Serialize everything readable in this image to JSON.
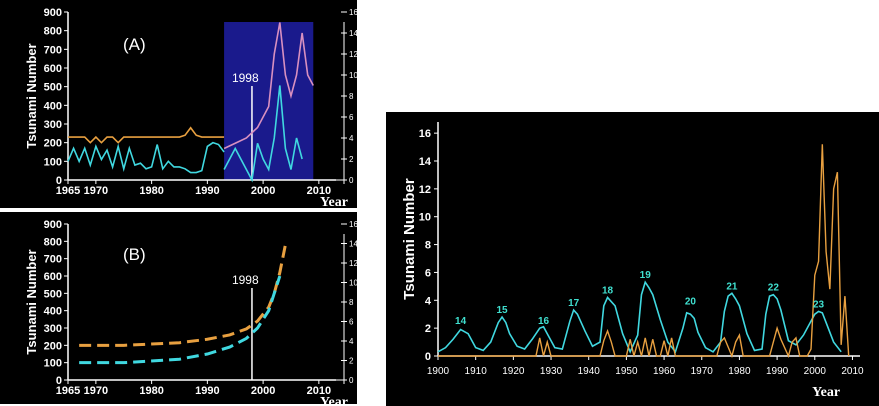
{
  "colors": {
    "cyan": "#40d8e0",
    "orange": "#e8a040",
    "pink": "#d890c0",
    "navy": "#1a1a8c",
    "white": "#ffffff"
  },
  "chart_data": [
    {
      "id": "A",
      "type": "line",
      "panel_label": "(A)",
      "ylabel": "Tsunami Number",
      "xlabel": "Year",
      "xlim": [
        1965,
        2012
      ],
      "xticks": [
        1965,
        1970,
        1980,
        1990,
        2000,
        2010
      ],
      "ylim": [
        0,
        900
      ],
      "yticks": [
        0,
        100,
        200,
        300,
        400,
        500,
        600,
        700,
        800,
        900
      ],
      "right_ylim": [
        0,
        16
      ],
      "right_yticks": [
        0,
        2,
        4,
        6,
        8,
        10,
        12,
        14,
        16
      ],
      "annotation": "1998",
      "annotation_x": 1998,
      "shaded_region": [
        1993,
        2009
      ],
      "series": [
        {
          "color": "orange",
          "x": [
            1965,
            1966,
            1967,
            1968,
            1969,
            1970,
            1971,
            1972,
            1973,
            1974,
            1975,
            1976,
            1977,
            1978,
            1979,
            1980,
            1981,
            1982,
            1983,
            1984,
            1985,
            1986,
            1987,
            1988,
            1989,
            1990,
            1991,
            1992,
            1993
          ],
          "values": [
            230,
            230,
            230,
            230,
            200,
            230,
            200,
            230,
            230,
            200,
            230,
            230,
            230,
            230,
            230,
            230,
            230,
            230,
            230,
            230,
            230,
            240,
            280,
            240,
            230,
            230,
            230,
            230,
            230
          ]
        },
        {
          "color": "cyan",
          "x": [
            1965,
            1966,
            1967,
            1968,
            1969,
            1970,
            1971,
            1972,
            1973,
            1974,
            1975,
            1976,
            1977,
            1978,
            1979,
            1980,
            1981,
            1982,
            1983,
            1984,
            1985,
            1986,
            1987,
            1988,
            1989,
            1990,
            1991,
            1992,
            1993
          ],
          "values": [
            100,
            170,
            100,
            170,
            80,
            180,
            110,
            160,
            70,
            180,
            60,
            170,
            80,
            90,
            60,
            70,
            190,
            60,
            100,
            70,
            70,
            60,
            40,
            40,
            50,
            180,
            200,
            190,
            150
          ]
        },
        {
          "color": "pink",
          "x": [
            1993,
            1995,
            1997,
            1999,
            2001,
            2002,
            2003,
            2004,
            2005,
            2006,
            2007,
            2008,
            2009
          ],
          "values": [
            3,
            3.5,
            4,
            5,
            7,
            12,
            15,
            10,
            8,
            10,
            14,
            10,
            9
          ]
        },
        {
          "color": "cyan",
          "x": [
            1993,
            1995,
            1997,
            1998,
            1999,
            2000,
            2001,
            2002,
            2003,
            2004,
            2005,
            2006,
            2007
          ],
          "values": [
            1,
            3,
            1,
            0,
            3.5,
            2,
            1,
            4,
            9,
            3,
            1,
            4,
            2
          ]
        }
      ]
    },
    {
      "id": "B",
      "type": "line",
      "panel_label": "(B)",
      "ylabel": "Tsunami Number",
      "xlabel": "Year",
      "xlim": [
        1965,
        2012
      ],
      "xticks": [
        1965,
        1970,
        1980,
        1990,
        2000,
        2010
      ],
      "ylim": [
        0,
        900
      ],
      "yticks": [
        0,
        100,
        200,
        300,
        400,
        500,
        600,
        700,
        800,
        900
      ],
      "right_ylim": [
        0,
        16
      ],
      "right_yticks": [
        0,
        2,
        4,
        6,
        8,
        10,
        12,
        14,
        16
      ],
      "annotation": "1998",
      "annotation_x": 1998,
      "series": [
        {
          "color": "orange",
          "style": "dashed",
          "x": [
            1967,
            1975,
            1985,
            1990,
            1994,
            1997,
            1999,
            2001,
            2002,
            2003,
            2004
          ],
          "values": [
            200,
            200,
            215,
            235,
            260,
            295,
            340,
            420,
            500,
            620,
            780
          ]
        },
        {
          "color": "cyan",
          "style": "dashed",
          "x": [
            1967,
            1975,
            1985,
            1990,
            1994,
            1997,
            1999,
            2001,
            2002,
            2003
          ],
          "values": [
            100,
            100,
            120,
            150,
            190,
            240,
            300,
            400,
            500,
            600
          ]
        }
      ]
    },
    {
      "id": "C",
      "type": "line",
      "ylabel": "Tsunami Number",
      "xlabel": "Year",
      "xlim": [
        1900,
        2012
      ],
      "xticks": [
        1900,
        1910,
        1920,
        1930,
        1940,
        1950,
        1960,
        1970,
        1980,
        1990,
        2000,
        2010
      ],
      "ylim": [
        0,
        16.8
      ],
      "yticks": [
        0,
        2,
        4,
        6,
        8,
        10,
        12,
        14,
        16
      ],
      "peak_labels": [
        {
          "label": "14",
          "x": 1906,
          "y": 2.0
        },
        {
          "label": "15",
          "x": 1917,
          "y": 2.8
        },
        {
          "label": "16",
          "x": 1928,
          "y": 2.0
        },
        {
          "label": "17",
          "x": 1936,
          "y": 3.3
        },
        {
          "label": "18",
          "x": 1945,
          "y": 4.2
        },
        {
          "label": "19",
          "x": 1955,
          "y": 5.3
        },
        {
          "label": "20",
          "x": 1967,
          "y": 3.4
        },
        {
          "label": "21",
          "x": 1978,
          "y": 4.5
        },
        {
          "label": "22",
          "x": 1989,
          "y": 4.4
        },
        {
          "label": "23",
          "x": 2001,
          "y": 3.2
        }
      ],
      "series": [
        {
          "color": "cyan",
          "x": [
            1900,
            1902,
            1904,
            1906,
            1908,
            1910,
            1912,
            1914,
            1916,
            1917,
            1918,
            1919,
            1921,
            1923,
            1925,
            1927,
            1928,
            1929,
            1931,
            1933,
            1935,
            1936,
            1937,
            1939,
            1941,
            1943,
            1944,
            1945,
            1946,
            1947,
            1949,
            1951,
            1953,
            1954,
            1955,
            1956,
            1957,
            1959,
            1961,
            1963,
            1965,
            1966,
            1967,
            1968,
            1969,
            1971,
            1973,
            1975,
            1976,
            1977,
            1978,
            1979,
            1980,
            1982,
            1984,
            1986,
            1987,
            1988,
            1989,
            1990,
            1991,
            1993,
            1995,
            1997,
            1999,
            2000,
            2001,
            2002,
            2003,
            2005,
            2007
          ],
          "values": [
            0.3,
            0.6,
            1.2,
            1.9,
            1.6,
            0.6,
            0.4,
            1.0,
            2.4,
            2.8,
            2.4,
            1.6,
            0.7,
            0.5,
            1.2,
            2.0,
            2.1,
            1.6,
            0.6,
            0.5,
            2.5,
            3.3,
            3.0,
            1.8,
            0.7,
            1.0,
            3.6,
            4.2,
            3.9,
            3.6,
            1.6,
            0.3,
            1.5,
            4.4,
            5.3,
            4.9,
            4.4,
            2.6,
            1.0,
            0.3,
            2.0,
            3.1,
            3.0,
            2.7,
            1.7,
            0.6,
            0.3,
            1.0,
            3.2,
            4.3,
            4.5,
            4.1,
            3.6,
            1.6,
            0.4,
            0.5,
            3.0,
            4.3,
            4.4,
            4.1,
            3.3,
            1.1,
            0.8,
            1.5,
            2.5,
            3.0,
            3.2,
            3.1,
            2.4,
            1.0,
            0.3
          ]
        },
        {
          "color": "orange",
          "x": [
            1900,
            1926,
            1927,
            1928,
            1929,
            1930,
            1943,
            1944,
            1945,
            1946,
            1947,
            1950,
            1951,
            1952,
            1953,
            1954,
            1955,
            1956,
            1957,
            1958,
            1959,
            1960,
            1961,
            1962,
            1963,
            1964,
            1970,
            1974,
            1975,
            1976,
            1978,
            1979,
            1980,
            1981,
            1988,
            1989,
            1990,
            1991,
            1993,
            1994,
            1995,
            1996,
            1998,
            1999,
            2000,
            2001,
            2002,
            2003,
            2004,
            2005,
            2006,
            2007,
            2008,
            2009
          ],
          "values": [
            0,
            0,
            1.3,
            0,
            1.0,
            0,
            0,
            1.1,
            1.8,
            1.0,
            0,
            0,
            1.2,
            0,
            1.0,
            0,
            1.3,
            0,
            1.2,
            0,
            0,
            1.1,
            0,
            1.3,
            0,
            0,
            0,
            0,
            1.0,
            1.3,
            0,
            1.0,
            1.5,
            0,
            0,
            1.0,
            2.0,
            1.2,
            0,
            1.0,
            1.3,
            0,
            0,
            0.5,
            5.8,
            6.8,
            15.2,
            7.5,
            4.8,
            12.0,
            13.2,
            0.8,
            4.3,
            0
          ]
        }
      ]
    }
  ]
}
